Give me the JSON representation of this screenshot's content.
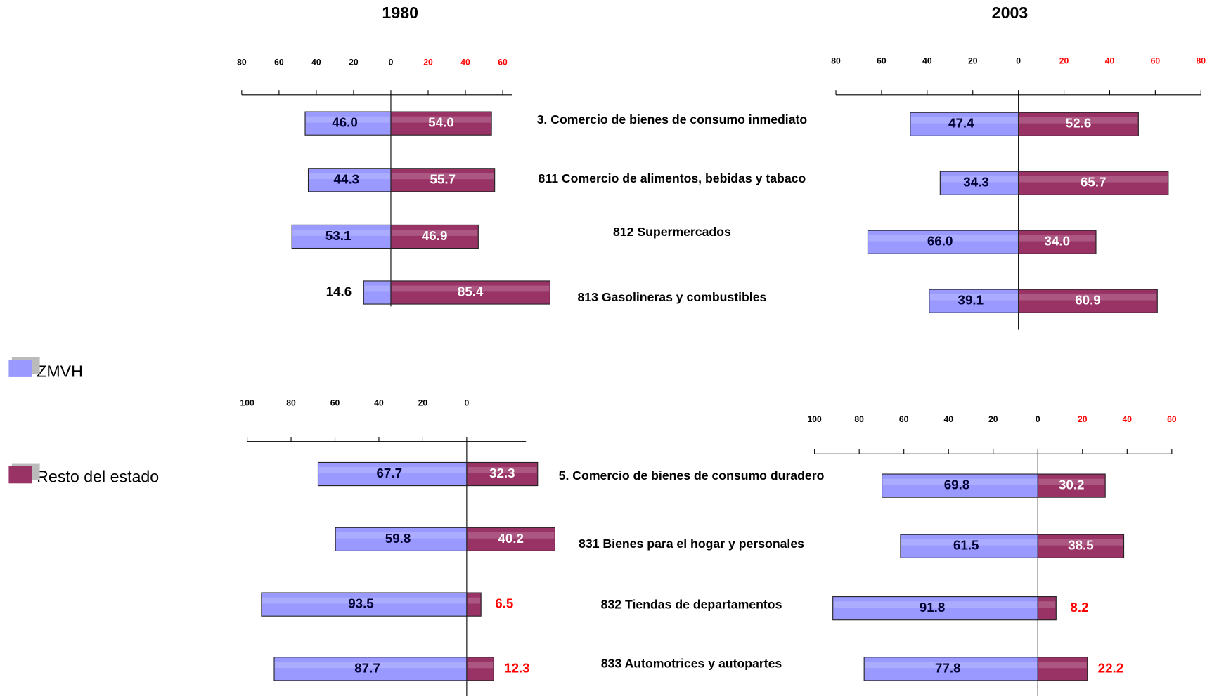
{
  "chart_data": [
    {
      "type": "butterfly",
      "title": "1980",
      "categories": [
        "3. Comercio de bienes de consumo inmediato",
        "811 Comercio de alimentos, bebidas y tabaco",
        "812 Supermercados",
        "813 Gasolineras y combustibles"
      ],
      "series": [
        {
          "name": "ZMVH",
          "color": "#9999ff",
          "values": [
            -46.0,
            -44.3,
            -53.1,
            -14.6
          ],
          "value_labels": [
            "46.0",
            "44.3",
            "53.1",
            "14.6"
          ]
        },
        {
          "name": "Resto del estado",
          "color": "#993366",
          "values": [
            54.0,
            55.7,
            46.9,
            85.4
          ],
          "value_labels": [
            "54.0",
            "55.7",
            "46.9",
            "85.4"
          ]
        }
      ],
      "xlim": [
        -80,
        65
      ],
      "xticks": [
        {
          "value": -80,
          "label": "80"
        },
        {
          "value": -60,
          "label": "60"
        },
        {
          "value": -40,
          "label": "40"
        },
        {
          "value": -20,
          "label": "20"
        },
        0,
        20,
        40,
        60
      ],
      "positive_tick_color": "#ff0000"
    },
    {
      "type": "butterfly",
      "title": "2003",
      "series": [
        {
          "name": "ZMVH",
          "color": "#9999ff",
          "values": [
            -47.4,
            -34.3,
            -66.0,
            -39.1
          ],
          "value_labels": [
            "47.4",
            "34.3",
            "66.0",
            "39.1"
          ]
        },
        {
          "name": "Resto del estado",
          "color": "#993366",
          "values": [
            52.6,
            65.7,
            34.0,
            60.9
          ],
          "value_labels": [
            "52.6",
            "65.7",
            "34.0",
            "60.9"
          ]
        }
      ],
      "xlim": [
        -80,
        80
      ],
      "xticks": [
        {
          "value": -80,
          "label": "80"
        },
        {
          "value": -60,
          "label": "60"
        },
        {
          "value": -40,
          "label": "40"
        },
        {
          "value": -20,
          "label": "20"
        },
        0,
        20,
        40,
        60,
        80
      ],
      "positive_tick_color": "#ff0000"
    },
    {
      "type": "butterfly",
      "categories": [
        "5. Comercio de bienes de consumo duradero",
        "831 Bienes para el hogar  y personales",
        "832 Tiendas de departamentos",
        "833 Automotrices y autopartes"
      ],
      "series": [
        {
          "name": "ZMVH",
          "color": "#9999ff",
          "values": [
            -67.7,
            -59.8,
            -93.5,
            -87.7
          ],
          "value_labels": [
            "67.7",
            "59.8",
            "93.5",
            "87.7"
          ]
        },
        {
          "name": "Resto del estado",
          "color": "#993366",
          "values": [
            32.3,
            40.2,
            6.5,
            12.3
          ]
        }
      ],
      "xlim": [
        -100,
        27
      ],
      "xticks": [
        {
          "value": -100,
          "label": "100"
        },
        {
          "value": -80,
          "label": "80"
        },
        {
          "value": -60,
          "label": "60"
        },
        {
          "value": -40,
          "label": "40"
        },
        {
          "value": -20,
          "label": "20"
        },
        0
      ]
    },
    {
      "type": "butterfly",
      "series": [
        {
          "name": "ZMVH",
          "color": "#9999ff",
          "values": [
            -69.8,
            -61.5,
            -91.8,
            -77.8
          ],
          "value_labels": [
            "69.8",
            "61.5",
            "91.8",
            "77.8"
          ]
        },
        {
          "name": "Resto del estado",
          "color": "#993366",
          "values": [
            30.2,
            38.5,
            8.2,
            22.2
          ]
        }
      ],
      "xlim": [
        -100,
        60
      ],
      "xticks": [
        {
          "value": -100,
          "label": "100"
        },
        {
          "value": -80,
          "label": "80"
        },
        {
          "value": -60,
          "label": "60"
        },
        {
          "value": -40,
          "label": "40"
        },
        {
          "value": -20,
          "label": "20"
        },
        0,
        20,
        40,
        60
      ],
      "positive_tick_color": "#ff0000"
    }
  ]
}
